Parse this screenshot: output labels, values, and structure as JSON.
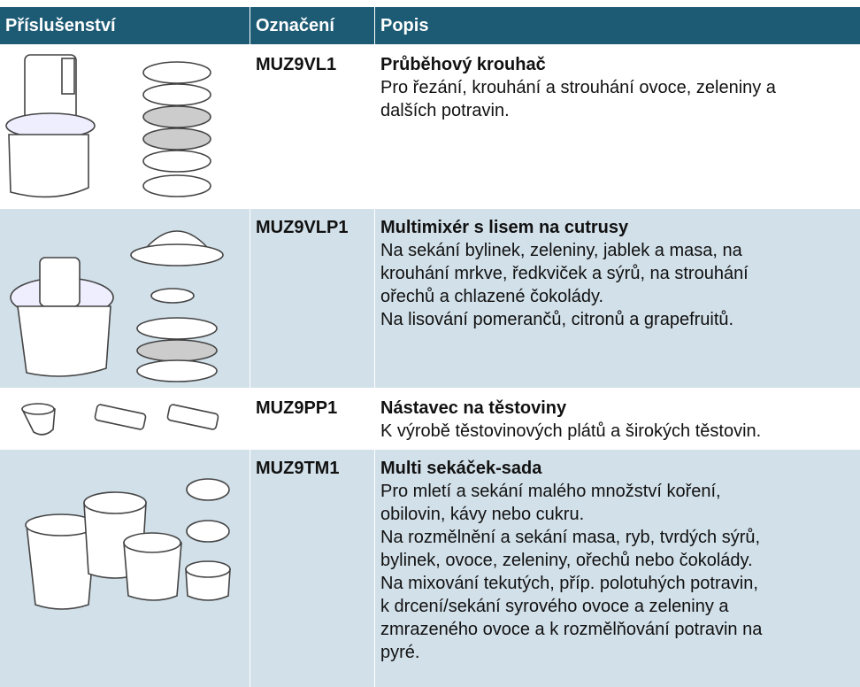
{
  "table": {
    "header": [
      "Příslušenství",
      "Označení",
      "Popis"
    ],
    "rows": [
      {
        "code": "MUZ9VL1",
        "title": "Průběhový krouhač",
        "lines": [
          "Pro řezání, krouhání a strouhání ovoce, zeleniny a",
          "dalších potravin."
        ]
      },
      {
        "code": "MUZ9VLP1",
        "title": "Multimixér s lisem na cutrusy",
        "lines": [
          "Na sekání bylinek, zeleniny, jablek a masa, na",
          "krouhání mrkve, ředkviček a sýrů, na strouhání",
          "ořechů a chlazené čokolády.",
          "Na lisování pomerančů, citronů a grapefruitů."
        ]
      },
      {
        "code": "MUZ9PP1",
        "title": "Nástavec na těstoviny",
        "lines": [
          "K výrobě těstovinových plátů a širokých těstovin."
        ]
      },
      {
        "code": "MUZ9TM1",
        "title": "Multi sekáček-sada",
        "lines": [
          "Pro mletí a sekání malého množství koření,",
          "obilovin, kávy nebo cukru.",
          "Na rozmělnění a sekání masa, ryb, tvrdých sýrů,",
          "bylinek, ovoce, zeleniny, ořechů nebo čokolády.",
          "Na mixování tekutých, příp. polotuhých potravin,",
          "k drcení/sekání syrového ovoce a zeleniny a",
          "zmrazeného ovoce a k rozmělňování potravin na",
          "pyré."
        ]
      }
    ]
  }
}
